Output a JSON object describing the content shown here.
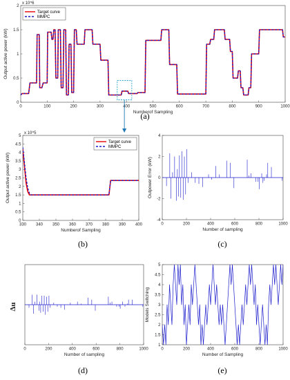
{
  "chart_data": [
    {
      "id": "a",
      "panel_label": "(a)",
      "type": "line",
      "xlabel": "Numberof Sampling",
      "ylabel": "Output active power (kW)",
      "y_multiplier": "x 10^6",
      "xlim": [
        0,
        1000
      ],
      "ylim": [
        0,
        2
      ],
      "xticks": [
        0,
        100,
        200,
        300,
        400,
        500,
        600,
        700,
        800,
        900,
        1000
      ],
      "yticks": [
        0,
        0.5,
        1,
        1.5,
        2
      ],
      "legend_position": "top-left",
      "series": [
        {
          "name": "Target curve",
          "color": "#e60000",
          "style": "solid",
          "x": [
            0,
            5,
            30,
            35,
            60,
            62,
            70,
            72,
            80,
            85,
            100,
            102,
            115,
            118,
            122,
            125,
            130,
            133,
            140,
            142,
            150,
            153,
            160,
            163,
            170,
            173,
            180,
            183,
            190,
            193,
            200,
            203,
            210,
            213,
            240,
            243,
            270,
            273,
            300,
            303,
            330,
            333,
            380,
            383,
            405,
            408,
            440,
            443,
            470,
            473,
            530,
            533,
            560,
            563,
            590,
            593,
            700,
            703,
            715,
            718,
            730,
            733,
            770,
            773,
            790,
            793,
            800,
            803,
            820,
            823,
            830,
            833,
            840,
            843,
            860,
            863,
            870,
            873,
            900,
            903,
            990,
            993,
            1000
          ],
          "y": [
            0.15,
            0.18,
            0.18,
            0.4,
            0.4,
            1.4,
            1.4,
            0.3,
            0.3,
            0.4,
            0.4,
            1.45,
            1.45,
            1.3,
            1.3,
            1.5,
            1.5,
            0.5,
            0.5,
            1.5,
            1.5,
            0.3,
            0.3,
            1.5,
            1.5,
            0.15,
            0.15,
            1.2,
            1.2,
            0.2,
            0.2,
            1.5,
            1.5,
            1.2,
            1.2,
            1.5,
            1.5,
            1.2,
            1.2,
            0.87,
            0.87,
            0.15,
            0.15,
            0.23,
            0.23,
            0.18,
            0.18,
            0.2,
            0.2,
            1.28,
            1.28,
            1.5,
            1.5,
            0.78,
            0.78,
            0.17,
            0.17,
            1.2,
            1.2,
            1.3,
            1.3,
            1.5,
            1.5,
            1.3,
            1.3,
            1.05,
            1.05,
            0.5,
            0.5,
            0.65,
            0.65,
            0.3,
            0.3,
            0.15,
            0.15,
            0.3,
            0.3,
            1.0,
            1.0,
            1.5,
            1.5,
            1.35,
            1.35
          ]
        },
        {
          "name": "MMPC",
          "color": "#1a1acc",
          "style": "dashed",
          "x": [
            0,
            5,
            30,
            35,
            60,
            62,
            70,
            72,
            80,
            85,
            100,
            102,
            115,
            118,
            122,
            125,
            130,
            133,
            140,
            142,
            150,
            153,
            160,
            163,
            170,
            173,
            180,
            183,
            190,
            193,
            200,
            203,
            210,
            213,
            240,
            243,
            270,
            273,
            300,
            303,
            330,
            333,
            380,
            383,
            405,
            408,
            440,
            443,
            470,
            473,
            530,
            533,
            560,
            563,
            590,
            593,
            700,
            703,
            715,
            718,
            730,
            733,
            770,
            773,
            790,
            793,
            800,
            803,
            820,
            823,
            830,
            833,
            840,
            843,
            860,
            863,
            870,
            873,
            900,
            903,
            990,
            993,
            1000
          ],
          "y": [
            0.15,
            0.18,
            0.18,
            0.4,
            0.4,
            1.4,
            1.4,
            0.3,
            0.3,
            0.4,
            0.4,
            1.45,
            1.45,
            1.3,
            1.3,
            1.5,
            1.5,
            0.5,
            0.5,
            1.5,
            1.5,
            0.3,
            0.3,
            1.5,
            1.5,
            0.15,
            0.15,
            1.2,
            1.2,
            0.2,
            0.2,
            1.5,
            1.5,
            1.2,
            1.2,
            1.5,
            1.5,
            1.2,
            1.2,
            0.87,
            0.87,
            0.15,
            0.15,
            0.23,
            0.23,
            0.18,
            0.18,
            0.2,
            0.2,
            1.28,
            1.28,
            1.5,
            1.5,
            0.78,
            0.78,
            0.17,
            0.17,
            1.2,
            1.2,
            1.3,
            1.3,
            1.5,
            1.5,
            1.3,
            1.3,
            1.05,
            1.05,
            0.5,
            0.5,
            0.65,
            0.65,
            0.3,
            0.3,
            0.15,
            0.15,
            0.3,
            0.3,
            1.0,
            1.0,
            1.5,
            1.5,
            1.35,
            1.35
          ]
        }
      ]
    },
    {
      "id": "b",
      "panel_label": "(b)",
      "type": "line",
      "xlabel": "Numberof Sampling",
      "ylabel": "Output active power (kW)",
      "y_multiplier": "x 10^5",
      "xlim": [
        330,
        400
      ],
      "ylim": [
        0,
        5
      ],
      "xticks": [
        330,
        340,
        350,
        360,
        370,
        380,
        390,
        400
      ],
      "yticks": [
        0,
        0.5,
        1,
        1.5,
        2,
        2.5,
        3,
        3.5,
        4,
        4.5,
        5
      ],
      "legend_position": "top-right",
      "series": [
        {
          "name": "Target curve",
          "color": "#e60000",
          "style": "solid",
          "x": [
            330,
            331,
            332,
            333,
            334,
            335,
            381,
            382,
            383,
            400
          ],
          "y": [
            4.2,
            3.2,
            2.2,
            1.7,
            1.5,
            1.5,
            1.5,
            1.5,
            2.35,
            2.35
          ]
        },
        {
          "name": "MMPC",
          "color": "#1a1acc",
          "style": "dashed",
          "x": [
            330,
            331,
            332,
            333,
            334,
            335,
            381,
            382,
            383,
            400
          ],
          "y": [
            4.3,
            3.4,
            2.5,
            1.9,
            1.6,
            1.5,
            1.5,
            1.52,
            2.35,
            2.35
          ]
        }
      ]
    },
    {
      "id": "c",
      "panel_label": "(c)",
      "type": "line",
      "xlabel": "Number of sampling",
      "ylabel": "Outpower Error (kW)",
      "xlim": [
        0,
        1000
      ],
      "ylim": [
        -4,
        4
      ],
      "xticks": [
        0,
        200,
        400,
        600,
        800,
        1000
      ],
      "yticks": [
        -4,
        -2,
        0,
        2,
        4
      ],
      "series": [
        {
          "name": "",
          "color": "#1a1acc",
          "spikes": {
            "x": [
              35,
              62,
              72,
              85,
              102,
              118,
              125,
              133,
              142,
              153,
              163,
              173,
              183,
              193,
              203,
              213,
              243,
              273,
              303,
              333,
              383,
              408,
              443,
              473,
              533,
              563,
              593,
              703,
              718,
              733,
              773,
              793,
              803,
              823,
              833,
              843,
              863,
              873,
              903,
              993
            ],
            "y": [
              -0.8,
              2.3,
              -2.0,
              0.5,
              2.0,
              -2.2,
              0.8,
              -1.8,
              2.1,
              -1.9,
              2.5,
              -2.1,
              2.0,
              -1.6,
              2.7,
              -0.5,
              0.5,
              -0.5,
              -0.6,
              -0.9,
              0.3,
              -0.2,
              1.1,
              0.3,
              1.6,
              1.4,
              -1.0,
              1.7,
              0.2,
              0.4,
              -0.4,
              -0.4,
              -1.1,
              0.4,
              -0.5,
              -0.3,
              0.3,
              1.4,
              1.0,
              -0.3
            ]
          }
        }
      ]
    },
    {
      "id": "d",
      "panel_label": "(d)",
      "type": "line",
      "xlabel": "Number of sampling",
      "ylabel": "Δu",
      "xlim": [
        0,
        1000
      ],
      "ylim": [
        -4,
        4
      ],
      "xticks": [
        0,
        200,
        400,
        600,
        800,
        1000
      ],
      "yticks": [],
      "series": [
        {
          "name": "",
          "color": "#1a1acc",
          "spikes": {
            "x": [
              35,
              62,
              72,
              85,
              102,
              118,
              125,
              133,
              142,
              153,
              163,
              173,
              183,
              193,
              203,
              213,
              243,
              273,
              303,
              333,
              383,
              443,
              473,
              533,
              563,
              593,
              703,
              718,
              733,
              773,
              793,
              803,
              823,
              843,
              863,
              873,
              903,
              993
            ],
            "y": [
              -0.3,
              1.0,
              -0.9,
              0.3,
              1.0,
              -0.6,
              0.3,
              -0.8,
              0.9,
              -0.7,
              0.9,
              -1.0,
              0.8,
              -0.7,
              0.9,
              -0.3,
              0.2,
              -0.2,
              -0.3,
              -0.5,
              0.2,
              0.3,
              0.1,
              0.7,
              0.5,
              -0.6,
              0.8,
              0.2,
              0.3,
              -0.2,
              -0.2,
              -0.4,
              0.3,
              -0.2,
              0.1,
              0.5,
              0.5,
              -0.2
            ]
          }
        }
      ]
    },
    {
      "id": "e",
      "panel_label": "(e)",
      "type": "line",
      "xlabel": "Number of Sampling",
      "ylabel": "Models Switching",
      "xlim": [
        0,
        1000
      ],
      "ylim": [
        1,
        5
      ],
      "xticks": [
        0,
        200,
        400,
        600,
        800,
        1000
      ],
      "yticks": [
        1,
        1.5,
        2,
        2.5,
        3,
        3.5,
        4,
        4.5,
        5
      ],
      "series": [
        {
          "name": "",
          "color": "#1a1acc",
          "x": [
            0,
            10,
            20,
            30,
            40,
            50,
            60,
            70,
            80,
            90,
            100,
            110,
            120,
            130,
            140,
            150,
            160,
            170,
            180,
            190,
            200,
            210,
            220,
            230,
            240,
            250,
            260,
            270,
            280,
            290,
            300,
            310,
            320,
            330,
            340,
            350,
            360,
            370,
            380,
            390,
            400,
            410,
            420,
            430,
            440,
            450,
            460,
            470,
            480,
            490,
            500,
            510,
            520,
            530,
            540,
            550,
            560,
            570,
            580,
            590,
            600,
            610,
            620,
            630,
            640,
            650,
            660,
            670,
            680,
            690,
            700,
            710,
            720,
            730,
            740,
            750,
            760,
            770,
            780,
            790,
            800,
            810,
            820,
            830,
            840,
            850,
            860,
            870,
            880,
            890,
            900,
            910,
            920,
            930,
            940,
            950,
            960,
            970,
            980,
            990,
            1000
          ],
          "y": [
            2,
            1,
            2,
            1,
            3,
            2,
            4,
            3,
            2,
            4,
            5,
            4,
            3,
            5,
            4,
            5,
            3,
            4,
            2,
            3,
            1,
            2,
            3,
            2,
            4,
            3,
            4,
            5,
            4,
            3,
            2,
            3,
            1,
            2,
            1,
            2,
            3,
            2,
            3,
            4,
            3,
            4,
            5,
            4,
            3,
            4,
            3,
            2,
            3,
            2,
            3,
            2,
            1,
            2,
            3,
            4,
            5,
            4,
            5,
            4,
            3,
            2,
            1,
            2,
            1,
            2,
            3,
            2,
            3,
            4,
            3,
            4,
            5,
            4,
            5,
            4,
            3,
            4,
            2,
            3,
            2,
            1,
            2,
            3,
            2,
            1,
            2,
            1,
            3,
            4,
            3,
            4,
            5,
            4,
            5,
            4,
            3,
            4,
            5,
            4,
            5
          ]
        }
      ]
    }
  ]
}
